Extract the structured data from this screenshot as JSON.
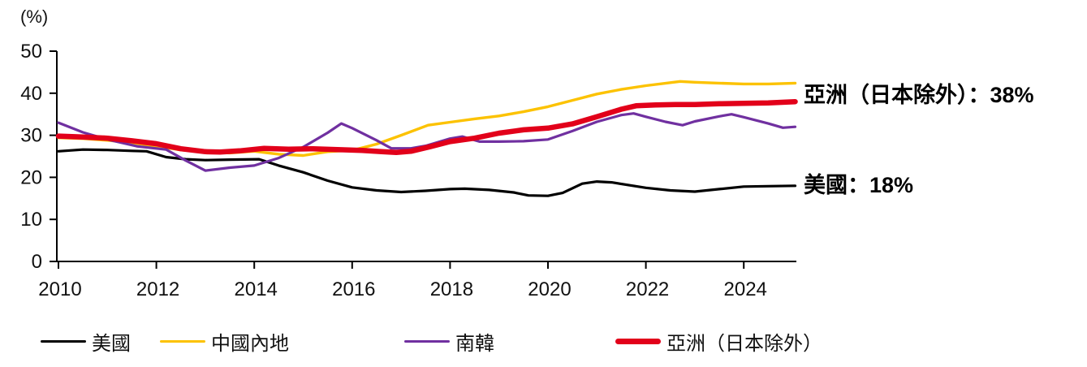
{
  "chart_data": {
    "type": "line",
    "title": "",
    "ylabel": "(%)",
    "xlabel": "",
    "ylim": [
      0,
      50
    ],
    "yticks": [
      0,
      10,
      20,
      30,
      40,
      50
    ],
    "xlim": [
      2010,
      2025.1
    ],
    "xticks": [
      2010,
      2012,
      2014,
      2016,
      2018,
      2020,
      2022,
      2024
    ],
    "grid": false,
    "legend_position": "bottom",
    "axis_color": "#000000",
    "series": [
      {
        "name": "美國",
        "color": "#000000",
        "width": 3.2,
        "points": [
          [
            2010,
            26.2
          ],
          [
            2010.5,
            26.6
          ],
          [
            2011,
            26.5
          ],
          [
            2011.5,
            26.3
          ],
          [
            2011.8,
            26.2
          ],
          [
            2012.2,
            24.8
          ],
          [
            2012.6,
            24.3
          ],
          [
            2013,
            24.1
          ],
          [
            2013.5,
            24.2
          ],
          [
            2014.1,
            24.3
          ],
          [
            2014.5,
            22.8
          ],
          [
            2015,
            21.2
          ],
          [
            2015.5,
            19.2
          ],
          [
            2016,
            17.6
          ],
          [
            2016.5,
            16.9
          ],
          [
            2017,
            16.5
          ],
          [
            2017.5,
            16.8
          ],
          [
            2018,
            17.2
          ],
          [
            2018.3,
            17.3
          ],
          [
            2018.8,
            17.0
          ],
          [
            2019.3,
            16.4
          ],
          [
            2019.6,
            15.7
          ],
          [
            2020,
            15.6
          ],
          [
            2020.3,
            16.3
          ],
          [
            2020.7,
            18.5
          ],
          [
            2021,
            19.0
          ],
          [
            2021.3,
            18.8
          ],
          [
            2022,
            17.5
          ],
          [
            2022.5,
            16.9
          ],
          [
            2023,
            16.6
          ],
          [
            2023.5,
            17.2
          ],
          [
            2024,
            17.8
          ],
          [
            2024.5,
            17.9
          ],
          [
            2025.05,
            18.0
          ]
        ]
      },
      {
        "name": "中國內地",
        "color": "#fcc200",
        "width": 3.4,
        "points": [
          [
            2010,
            29.4
          ],
          [
            2010.5,
            29.2
          ],
          [
            2011,
            28.8
          ],
          [
            2011.5,
            28.2
          ],
          [
            2012,
            27.4
          ],
          [
            2012.5,
            26.5
          ],
          [
            2013,
            26.0
          ],
          [
            2013.5,
            25.8
          ],
          [
            2014,
            26.2
          ],
          [
            2014.5,
            25.5
          ],
          [
            2015,
            25.2
          ],
          [
            2015.5,
            26.1
          ],
          [
            2016,
            26.4
          ],
          [
            2016.5,
            27.9
          ],
          [
            2017,
            30.0
          ],
          [
            2017.55,
            32.4
          ],
          [
            2018,
            33.1
          ],
          [
            2018.5,
            33.9
          ],
          [
            2019,
            34.6
          ],
          [
            2019.5,
            35.6
          ],
          [
            2020,
            36.8
          ],
          [
            2020.5,
            38.3
          ],
          [
            2021,
            39.8
          ],
          [
            2021.5,
            40.9
          ],
          [
            2022,
            41.8
          ],
          [
            2022.7,
            42.8
          ],
          [
            2023,
            42.6
          ],
          [
            2023.5,
            42.4
          ],
          [
            2024,
            42.2
          ],
          [
            2024.5,
            42.2
          ],
          [
            2025.05,
            42.4
          ]
        ]
      },
      {
        "name": "南韓",
        "color": "#7030a0",
        "width": 3.2,
        "points": [
          [
            2010,
            33.0
          ],
          [
            2010.5,
            30.7
          ],
          [
            2011,
            29.0
          ],
          [
            2011.6,
            27.4
          ],
          [
            2012.2,
            26.6
          ],
          [
            2012.6,
            24.0
          ],
          [
            2013,
            21.6
          ],
          [
            2013.5,
            22.3
          ],
          [
            2014,
            22.8
          ],
          [
            2014.5,
            24.6
          ],
          [
            2015,
            27.2
          ],
          [
            2015.5,
            30.6
          ],
          [
            2015.78,
            32.8
          ],
          [
            2016,
            31.7
          ],
          [
            2016.5,
            28.8
          ],
          [
            2016.8,
            26.9
          ],
          [
            2017.2,
            26.9
          ],
          [
            2017.5,
            27.5
          ],
          [
            2018,
            29.2
          ],
          [
            2018.25,
            29.7
          ],
          [
            2018.6,
            28.5
          ],
          [
            2019,
            28.5
          ],
          [
            2019.5,
            28.6
          ],
          [
            2020,
            29.0
          ],
          [
            2020.5,
            31.0
          ],
          [
            2021,
            33.2
          ],
          [
            2021.5,
            34.8
          ],
          [
            2021.75,
            35.2
          ],
          [
            2022,
            34.4
          ],
          [
            2022.4,
            33.2
          ],
          [
            2022.75,
            32.4
          ],
          [
            2023,
            33.3
          ],
          [
            2023.5,
            34.5
          ],
          [
            2023.75,
            35.0
          ],
          [
            2024,
            34.3
          ],
          [
            2024.5,
            32.8
          ],
          [
            2024.8,
            31.8
          ],
          [
            2025.05,
            32.0
          ]
        ]
      },
      {
        "name": "亞洲（日本除外）",
        "color": "#e2001a",
        "width": 6.5,
        "points": [
          [
            2010,
            29.8
          ],
          [
            2010.5,
            29.6
          ],
          [
            2011,
            29.3
          ],
          [
            2011.5,
            28.7
          ],
          [
            2012,
            28.0
          ],
          [
            2012.5,
            26.8
          ],
          [
            2013,
            26.1
          ],
          [
            2013.3,
            26.0
          ],
          [
            2013.7,
            26.3
          ],
          [
            2014.2,
            26.9
          ],
          [
            2014.7,
            26.7
          ],
          [
            2015.2,
            26.8
          ],
          [
            2015.7,
            26.6
          ],
          [
            2016.2,
            26.4
          ],
          [
            2016.6,
            26.1
          ],
          [
            2016.9,
            25.9
          ],
          [
            2017.2,
            26.2
          ],
          [
            2017.6,
            27.3
          ],
          [
            2018,
            28.5
          ],
          [
            2018.5,
            29.3
          ],
          [
            2019,
            30.5
          ],
          [
            2019.5,
            31.3
          ],
          [
            2020,
            31.7
          ],
          [
            2020.5,
            32.7
          ],
          [
            2021,
            34.4
          ],
          [
            2021.5,
            36.2
          ],
          [
            2021.8,
            37.0
          ],
          [
            2022.2,
            37.2
          ],
          [
            2022.6,
            37.3
          ],
          [
            2023,
            37.3
          ],
          [
            2023.5,
            37.5
          ],
          [
            2024,
            37.6
          ],
          [
            2024.5,
            37.7
          ],
          [
            2025.05,
            38.0
          ]
        ]
      }
    ],
    "annotations": [
      {
        "text": "亞洲（日本除外）：38%",
        "value": 38
      },
      {
        "text": "美國：18%",
        "value": 18
      }
    ],
    "legend": [
      {
        "label": "美國"
      },
      {
        "label": "中國內地"
      },
      {
        "label": "南韓"
      },
      {
        "label": "亞洲（日本除外）"
      }
    ]
  }
}
